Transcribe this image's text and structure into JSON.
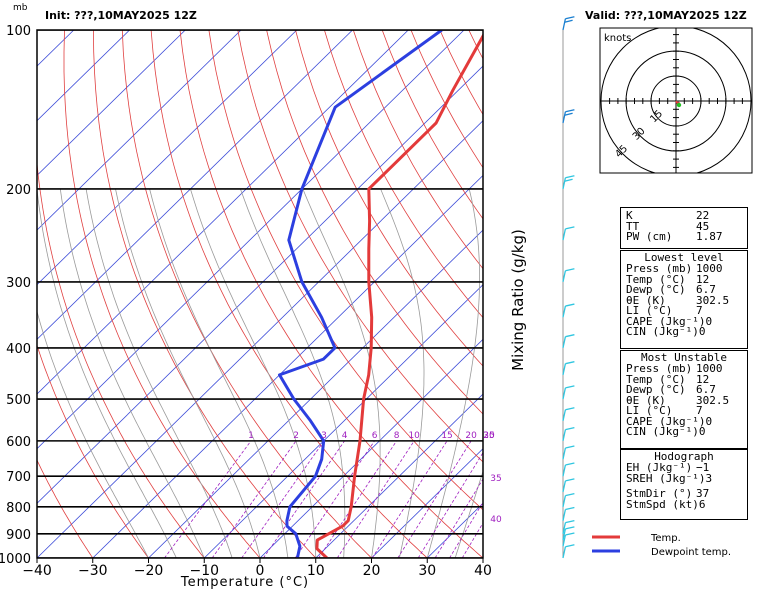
{
  "header": {
    "init_label": "Init: ???,10MAY2025 12Z",
    "valid_label": "Valid: ???,10MAY2025 12Z",
    "mb_unit": "mb"
  },
  "chart_data": {
    "type": "line",
    "title": "",
    "xlabel": "Temperature (°C)",
    "ylabel": "mb",
    "mixing_ratio_label": "Mixing Ratio (g/kg)",
    "xlim": [
      -40,
      40
    ],
    "ylim": [
      1000,
      100
    ],
    "y_scale": "log",
    "skew": true,
    "x_ticks": [
      -40,
      -30,
      -20,
      -10,
      0,
      10,
      20,
      30,
      40
    ],
    "y_ticks": [
      100,
      200,
      300,
      400,
      500,
      600,
      700,
      800,
      900,
      1000
    ],
    "mixing_ratio_ticks": [
      "1",
      "2",
      "3",
      "4",
      "6",
      "8",
      "10",
      "15",
      "20",
      "25",
      "30",
      "35",
      "40"
    ],
    "series": [
      {
        "name": "Temp.",
        "color": "#e33a3a",
        "points": [
          [
            1000,
            12
          ],
          [
            960,
            8.5
          ],
          [
            925,
            7
          ],
          [
            870,
            9
          ],
          [
            850,
            9
          ],
          [
            800,
            7
          ],
          [
            700,
            2
          ],
          [
            600,
            -3.5
          ],
          [
            500,
            -10.5
          ],
          [
            450,
            -14
          ],
          [
            400,
            -18.5
          ],
          [
            350,
            -24
          ],
          [
            300,
            -31
          ],
          [
            260,
            -37
          ],
          [
            230,
            -42
          ],
          [
            200,
            -48
          ],
          [
            180,
            -48
          ],
          [
            150,
            -48
          ],
          [
            130,
            -51
          ],
          [
            100,
            -56
          ]
        ]
      },
      {
        "name": "Dewpoint temp.",
        "color": "#2c3fe0",
        "points": [
          [
            1000,
            6.7
          ],
          [
            950,
            5
          ],
          [
            900,
            2
          ],
          [
            870,
            -1
          ],
          [
            850,
            -2
          ],
          [
            800,
            -4
          ],
          [
            700,
            -5
          ],
          [
            650,
            -7
          ],
          [
            600,
            -10
          ],
          [
            550,
            -16
          ],
          [
            500,
            -23
          ],
          [
            450,
            -30
          ],
          [
            420,
            -25
          ],
          [
            400,
            -25
          ],
          [
            350,
            -33
          ],
          [
            300,
            -43
          ],
          [
            250,
            -53
          ],
          [
            200,
            -60
          ],
          [
            140,
            -69
          ],
          [
            100,
            -64
          ]
        ]
      }
    ],
    "legend_position": "bottom-right"
  },
  "hodograph": {
    "units_label": "knots",
    "ring_labels": [
      "15",
      "30",
      "45"
    ]
  },
  "indices": {
    "top": [
      {
        "label": "K",
        "value": "22"
      },
      {
        "label": "TT",
        "value": "45"
      },
      {
        "label": "PW (cm)",
        "value": "1.87"
      }
    ],
    "lowest_title": "Lowest level",
    "lowest": [
      {
        "label": "Press (mb)",
        "value": "1000"
      },
      {
        "label": "Temp (°C)",
        "value": "12"
      },
      {
        "label": "Dewp (°C)",
        "value": "6.7"
      },
      {
        "label": "θE (K)",
        "value": "302.5"
      },
      {
        "label": "LI (°C)",
        "value": "7"
      },
      {
        "label": "CAPE (Jkg⁻¹)",
        "value": "0"
      },
      {
        "label": "CIN (Jkg⁻¹)",
        "value": "0"
      }
    ],
    "unstable_title": "Most Unstable",
    "unstable": [
      {
        "label": "Press (mb)",
        "value": "1000"
      },
      {
        "label": "Temp (°C)",
        "value": "12"
      },
      {
        "label": "Dewp (°C)",
        "value": "6.7"
      },
      {
        "label": "θE (K)",
        "value": "302.5"
      },
      {
        "label": "LI (°C)",
        "value": "7"
      },
      {
        "label": "CAPE (Jkg⁻¹)",
        "value": "0"
      },
      {
        "label": "CIN (Jkg⁻¹)",
        "value": "0"
      }
    ],
    "hodo_title": "Hodograph",
    "hodo": [
      {
        "label": "EH (Jkg⁻¹)",
        "value": "−1"
      },
      {
        "label": "SREH (Jkg⁻¹)",
        "value": "3"
      }
    ],
    "storm": [
      {
        "label": "StmDir (°)",
        "value": "37"
      },
      {
        "label": "StmSpd (kt)",
        "value": "6"
      }
    ]
  },
  "legend": {
    "temp_label": "Temp.",
    "dew_label": "Dewpoint temp."
  }
}
